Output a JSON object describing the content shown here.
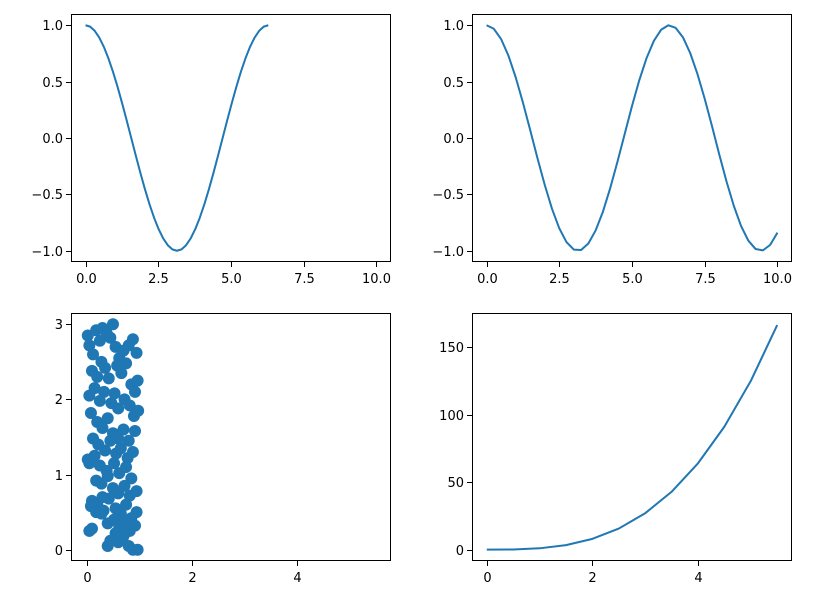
{
  "chart_data": [
    {
      "type": "line",
      "name": "top-left",
      "function": "cos(x)",
      "xlim": [
        -0.5,
        10.5
      ],
      "ylim": [
        -1.1,
        1.1
      ],
      "x_range": [
        0,
        6.283
      ],
      "xticks": [
        0.0,
        2.5,
        5.0,
        7.5,
        10.0
      ],
      "xtick_labels": [
        "0.0",
        "2.5",
        "5.0",
        "7.5",
        "10.0"
      ],
      "yticks": [
        -1.0,
        -0.5,
        0.0,
        0.5,
        1.0
      ],
      "ytick_labels": [
        "−1.0",
        "−0.5",
        "0.0",
        "0.5",
        "1.0"
      ],
      "series": [
        {
          "color": "#1f77b4",
          "x": [
            0.0,
            0.157,
            0.314,
            0.471,
            0.628,
            0.785,
            0.942,
            1.1,
            1.257,
            1.414,
            1.571,
            1.728,
            1.885,
            2.042,
            2.199,
            2.356,
            2.513,
            2.67,
            2.827,
            2.985,
            3.142,
            3.299,
            3.456,
            3.613,
            3.77,
            3.927,
            4.084,
            4.241,
            4.398,
            4.555,
            4.712,
            4.869,
            5.027,
            5.184,
            5.341,
            5.498,
            5.655,
            5.812,
            5.969,
            6.126,
            6.283
          ],
          "y": [
            1.0,
            0.988,
            0.951,
            0.891,
            0.809,
            0.707,
            0.588,
            0.454,
            0.309,
            0.156,
            0.0,
            -0.156,
            -0.309,
            -0.454,
            -0.588,
            -0.707,
            -0.809,
            -0.891,
            -0.951,
            -0.988,
            -1.0,
            -0.988,
            -0.951,
            -0.891,
            -0.809,
            -0.707,
            -0.588,
            -0.454,
            -0.309,
            -0.156,
            0.0,
            0.156,
            0.309,
            0.454,
            0.588,
            0.707,
            0.809,
            0.891,
            0.951,
            0.988,
            1.0
          ]
        }
      ]
    },
    {
      "type": "line",
      "name": "top-right",
      "function": "cos(x)",
      "xlim": [
        -0.5,
        10.5
      ],
      "ylim": [
        -1.1,
        1.1
      ],
      "x_range": [
        0,
        10
      ],
      "xticks": [
        0.0,
        2.5,
        5.0,
        7.5,
        10.0
      ],
      "xtick_labels": [
        "0.0",
        "2.5",
        "5.0",
        "7.5",
        "10.0"
      ],
      "yticks": [
        -1.0,
        -0.5,
        0.0,
        0.5,
        1.0
      ],
      "ytick_labels": [
        "−1.0",
        "−0.5",
        "0.0",
        "0.5",
        "1.0"
      ],
      "series": [
        {
          "color": "#1f77b4",
          "x": [
            0.0,
            0.25,
            0.5,
            0.75,
            1.0,
            1.25,
            1.5,
            1.75,
            2.0,
            2.25,
            2.5,
            2.75,
            3.0,
            3.25,
            3.5,
            3.75,
            4.0,
            4.25,
            4.5,
            4.75,
            5.0,
            5.25,
            5.5,
            5.75,
            6.0,
            6.25,
            6.5,
            6.75,
            7.0,
            7.25,
            7.5,
            7.75,
            8.0,
            8.25,
            8.5,
            8.75,
            9.0,
            9.25,
            9.5,
            9.75,
            10.0
          ],
          "y": [
            1.0,
            0.969,
            0.878,
            0.732,
            0.54,
            0.315,
            0.071,
            -0.178,
            -0.416,
            -0.628,
            -0.801,
            -0.924,
            -0.99,
            -0.994,
            -0.936,
            -0.82,
            -0.654,
            -0.446,
            -0.211,
            0.037,
            0.284,
            0.512,
            0.709,
            0.861,
            0.96,
            1.0,
            0.977,
            0.894,
            0.754,
            0.568,
            0.347,
            0.105,
            -0.146,
            -0.387,
            -0.602,
            -0.781,
            -0.911,
            -0.985,
            -0.997,
            -0.948,
            -0.839
          ]
        }
      ]
    },
    {
      "type": "scatter",
      "name": "bottom-left",
      "xlim": [
        -0.3,
        5.8
      ],
      "ylim": [
        -0.15,
        3.15
      ],
      "xticks": [
        0,
        2,
        4
      ],
      "xtick_labels": [
        "0",
        "2",
        "4"
      ],
      "yticks": [
        0,
        1,
        2,
        3
      ],
      "ytick_labels": [
        "0",
        "1",
        "2",
        "3"
      ],
      "series": [
        {
          "color": "#1f77b4",
          "points": [
            [
              0.02,
              2.85
            ],
            [
              0.05,
              2.72
            ],
            [
              0.12,
              2.6
            ],
            [
              0.18,
              2.92
            ],
            [
              0.25,
              2.78
            ],
            [
              0.3,
              2.95
            ],
            [
              0.38,
              2.88
            ],
            [
              0.45,
              2.82
            ],
            [
              0.5,
              3.0
            ],
            [
              0.55,
              2.7
            ],
            [
              0.62,
              2.55
            ],
            [
              0.7,
              2.65
            ],
            [
              0.8,
              2.72
            ],
            [
              0.88,
              2.8
            ],
            [
              0.95,
              2.62
            ],
            [
              0.1,
              2.38
            ],
            [
              0.2,
              2.3
            ],
            [
              0.28,
              2.5
            ],
            [
              0.35,
              2.42
            ],
            [
              0.42,
              2.28
            ],
            [
              0.58,
              2.45
            ],
            [
              0.66,
              2.35
            ],
            [
              0.75,
              2.48
            ],
            [
              0.85,
              2.2
            ],
            [
              0.92,
              2.1
            ],
            [
              0.97,
              2.25
            ],
            [
              0.05,
              2.05
            ],
            [
              0.15,
              2.15
            ],
            [
              0.25,
              1.98
            ],
            [
              0.33,
              2.1
            ],
            [
              0.47,
              1.95
            ],
            [
              0.53,
              2.08
            ],
            [
              0.6,
              1.88
            ],
            [
              0.72,
              2.0
            ],
            [
              0.82,
              1.92
            ],
            [
              0.9,
              1.78
            ],
            [
              0.98,
              1.85
            ],
            [
              0.08,
              1.82
            ],
            [
              0.2,
              1.7
            ],
            [
              0.3,
              1.62
            ],
            [
              0.4,
              1.75
            ],
            [
              0.5,
              1.55
            ],
            [
              0.6,
              1.48
            ],
            [
              0.7,
              1.6
            ],
            [
              0.8,
              1.45
            ],
            [
              0.92,
              1.58
            ],
            [
              0.12,
              1.48
            ],
            [
              0.22,
              1.4
            ],
            [
              0.35,
              1.32
            ],
            [
              0.45,
              1.45
            ],
            [
              0.56,
              1.28
            ],
            [
              0.65,
              1.35
            ],
            [
              0.78,
              1.22
            ],
            [
              0.88,
              1.3
            ],
            [
              0.02,
              1.2
            ],
            [
              0.15,
              1.25
            ],
            [
              0.25,
              1.12
            ],
            [
              0.38,
              1.05
            ],
            [
              0.52,
              1.15
            ],
            [
              0.62,
              1.02
            ],
            [
              0.75,
              1.1
            ],
            [
              0.85,
              0.95
            ],
            [
              0.05,
              1.15
            ],
            [
              0.18,
              0.92
            ],
            [
              0.28,
              0.88
            ],
            [
              0.4,
              0.98
            ],
            [
              0.5,
              0.82
            ],
            [
              0.6,
              0.75
            ],
            [
              0.72,
              0.85
            ],
            [
              0.82,
              0.72
            ],
            [
              0.95,
              0.78
            ],
            [
              0.1,
              0.65
            ],
            [
              0.2,
              0.6
            ],
            [
              0.32,
              0.52
            ],
            [
              0.42,
              0.68
            ],
            [
              0.55,
              0.55
            ],
            [
              0.65,
              0.48
            ],
            [
              0.75,
              0.6
            ],
            [
              0.85,
              0.42
            ],
            [
              0.95,
              0.5
            ],
            [
              0.08,
              0.58
            ],
            [
              0.18,
              0.5
            ],
            [
              0.28,
              0.48
            ],
            [
              0.4,
              0.35
            ],
            [
              0.52,
              0.4
            ],
            [
              0.62,
              0.3
            ],
            [
              0.72,
              0.38
            ],
            [
              0.82,
              0.25
            ],
            [
              0.92,
              0.32
            ],
            [
              0.05,
              0.25
            ],
            [
              0.1,
              0.28
            ],
            [
              0.45,
              0.12
            ],
            [
              0.4,
              0.05
            ],
            [
              0.6,
              0.1
            ],
            [
              0.7,
              0.18
            ],
            [
              0.8,
              0.05
            ],
            [
              0.88,
              0.0
            ],
            [
              0.97,
              0.0
            ],
            [
              0.55,
              0.22
            ],
            [
              0.3,
              0.7
            ]
          ]
        }
      ]
    },
    {
      "type": "line",
      "name": "bottom-right",
      "xlim": [
        -0.28,
        5.78
      ],
      "ylim": [
        -8.4,
        175.3
      ],
      "xticks": [
        0,
        2,
        4
      ],
      "xtick_labels": [
        "0",
        "2",
        "4"
      ],
      "yticks": [
        0,
        50,
        100,
        150
      ],
      "ytick_labels": [
        "0",
        "50",
        "100",
        "150"
      ],
      "series": [
        {
          "color": "#1f77b4",
          "x": [
            0.0,
            0.5,
            1.0,
            1.5,
            2.0,
            2.5,
            3.0,
            3.5,
            4.0,
            4.5,
            5.0,
            5.5
          ],
          "y": [
            0.0,
            0.125,
            1.0,
            3.375,
            8.0,
            15.625,
            27.0,
            42.875,
            64.0,
            91.125,
            125.0,
            166.375
          ]
        }
      ]
    }
  ]
}
